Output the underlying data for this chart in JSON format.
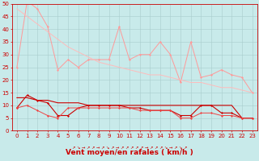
{
  "x": [
    0,
    1,
    2,
    3,
    4,
    5,
    6,
    7,
    8,
    9,
    10,
    11,
    12,
    13,
    14,
    15,
    16,
    17,
    18,
    19,
    20,
    21,
    22,
    23
  ],
  "series": {
    "rafales_max": [
      25,
      51,
      48,
      41,
      24,
      28,
      25,
      28,
      28,
      28,
      41,
      28,
      30,
      30,
      35,
      30,
      19,
      35,
      21,
      22,
      24,
      22,
      21,
      15
    ],
    "rafales_trend": [
      48,
      45,
      42,
      39,
      36,
      33,
      31,
      29,
      27,
      26,
      25,
      24,
      23,
      22,
      22,
      21,
      20,
      19,
      19,
      18,
      17,
      17,
      16,
      15
    ],
    "vent_max": [
      9,
      14,
      12,
      11,
      6,
      6,
      9,
      10,
      10,
      10,
      10,
      9,
      9,
      8,
      8,
      8,
      6,
      6,
      10,
      10,
      7,
      7,
      5,
      5
    ],
    "vent_trend": [
      13,
      13,
      12,
      12,
      11,
      11,
      11,
      10,
      10,
      10,
      10,
      10,
      10,
      10,
      10,
      10,
      10,
      10,
      10,
      10,
      10,
      10,
      5,
      5
    ],
    "vent_min": [
      9,
      10,
      8,
      6,
      5,
      9,
      9,
      9,
      9,
      9,
      9,
      9,
      8,
      8,
      8,
      8,
      5,
      5,
      7,
      7,
      6,
      6,
      5,
      5
    ]
  },
  "colors": {
    "rafales": "#FF9999",
    "rafales_trend": "#FFBBBB",
    "vent_dark": "#CC0000",
    "vent_mid": "#EE4444"
  },
  "xlabel": "Vent moyen/en rafales ( km/h )",
  "ylim": [
    0,
    50
  ],
  "yticks": [
    0,
    5,
    10,
    15,
    20,
    25,
    30,
    35,
    40,
    45,
    50
  ],
  "xticks": [
    0,
    1,
    2,
    3,
    4,
    5,
    6,
    7,
    8,
    9,
    10,
    11,
    12,
    13,
    14,
    15,
    16,
    17,
    18,
    19,
    20,
    21,
    22,
    23
  ],
  "bg_color": "#C8EAEA",
  "grid_color": "#A8CCCC",
  "label_color": "#CC0000",
  "tick_fs": 5,
  "xlabel_fs": 6.5,
  "arrow_labels": [
    "↗",
    "↘",
    "→",
    "↗",
    "↗",
    "→",
    "↗",
    "↘",
    "↗",
    "→",
    "↗",
    "↗",
    "↗",
    "↗",
    "↗",
    "→",
    "↗",
    "↗",
    "↗",
    "↘",
    "→",
    "↗",
    "↘",
    "↗"
  ]
}
